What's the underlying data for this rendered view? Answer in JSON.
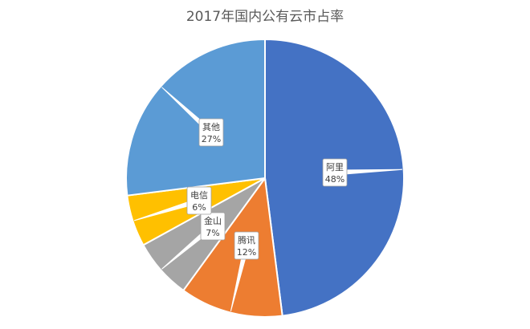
{
  "chart_data": {
    "type": "pie",
    "title": "2017年国内公有云市占率",
    "categories": [
      "阿里",
      "腾讯",
      "金山",
      "电信",
      "其他"
    ],
    "values": [
      48,
      12,
      7,
      6,
      27
    ],
    "value_labels": [
      "48%",
      "12%",
      "7%",
      "6%",
      "27%"
    ],
    "colors": [
      "#4472C4",
      "#ED7D31",
      "#A5A5A5",
      "#FFC000",
      "#5B9BD5"
    ],
    "legend": "none"
  }
}
